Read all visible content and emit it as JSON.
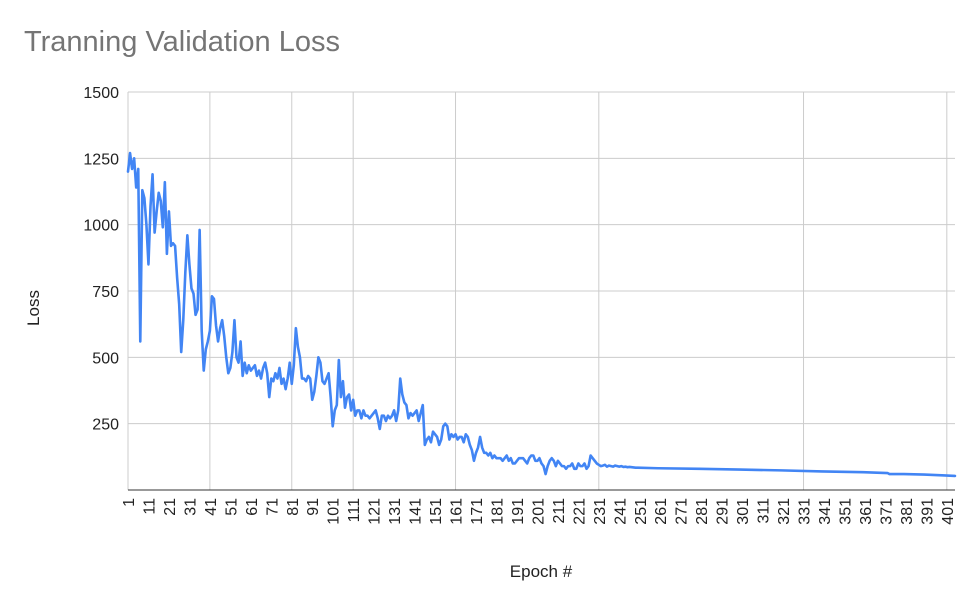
{
  "chart_data": {
    "type": "line",
    "title": "Tranning Validation Loss",
    "xlabel": "Epoch #",
    "ylabel": "Loss",
    "ylim": [
      0,
      1500
    ],
    "y_ticks": [
      250,
      500,
      750,
      1000,
      1250,
      1500
    ],
    "xlim": [
      1,
      405
    ],
    "x_ticks": [
      1,
      11,
      21,
      31,
      41,
      51,
      61,
      71,
      81,
      91,
      101,
      111,
      121,
      131,
      141,
      151,
      161,
      171,
      181,
      191,
      201,
      211,
      221,
      231,
      241,
      251,
      261,
      271,
      281,
      291,
      301,
      311,
      321,
      331,
      341,
      351,
      361,
      371,
      381,
      391,
      401
    ],
    "x_gridlines": [
      1,
      41,
      81,
      111,
      161,
      231,
      331,
      401
    ],
    "grid": true,
    "legend": "none",
    "series": [
      {
        "color": "#4285f4",
        "points": [
          [
            1,
            1200
          ],
          [
            2,
            1270
          ],
          [
            3,
            1210
          ],
          [
            4,
            1250
          ],
          [
            5,
            1140
          ],
          [
            6,
            1210
          ],
          [
            7,
            560
          ],
          [
            8,
            1130
          ],
          [
            9,
            1100
          ],
          [
            10,
            1000
          ],
          [
            11,
            850
          ],
          [
            12,
            1070
          ],
          [
            13,
            1190
          ],
          [
            14,
            970
          ],
          [
            15,
            1050
          ],
          [
            16,
            1120
          ],
          [
            17,
            1090
          ],
          [
            18,
            990
          ],
          [
            19,
            1160
          ],
          [
            20,
            890
          ],
          [
            21,
            1050
          ],
          [
            22,
            920
          ],
          [
            23,
            930
          ],
          [
            24,
            920
          ],
          [
            25,
            800
          ],
          [
            26,
            700
          ],
          [
            27,
            520
          ],
          [
            28,
            640
          ],
          [
            29,
            820
          ],
          [
            30,
            960
          ],
          [
            31,
            850
          ],
          [
            32,
            760
          ],
          [
            33,
            740
          ],
          [
            34,
            660
          ],
          [
            35,
            680
          ],
          [
            36,
            980
          ],
          [
            37,
            600
          ],
          [
            38,
            450
          ],
          [
            39,
            530
          ],
          [
            40,
            560
          ],
          [
            41,
            600
          ],
          [
            42,
            730
          ],
          [
            43,
            720
          ],
          [
            44,
            620
          ],
          [
            45,
            560
          ],
          [
            46,
            610
          ],
          [
            47,
            640
          ],
          [
            48,
            580
          ],
          [
            49,
            500
          ],
          [
            50,
            440
          ],
          [
            51,
            460
          ],
          [
            52,
            520
          ],
          [
            53,
            640
          ],
          [
            54,
            500
          ],
          [
            55,
            480
          ],
          [
            56,
            560
          ],
          [
            57,
            430
          ],
          [
            58,
            480
          ],
          [
            59,
            440
          ],
          [
            60,
            470
          ],
          [
            61,
            450
          ],
          [
            62,
            460
          ],
          [
            63,
            470
          ],
          [
            64,
            430
          ],
          [
            65,
            450
          ],
          [
            66,
            420
          ],
          [
            67,
            460
          ],
          [
            68,
            480
          ],
          [
            69,
            440
          ],
          [
            70,
            350
          ],
          [
            71,
            420
          ],
          [
            72,
            410
          ],
          [
            73,
            440
          ],
          [
            74,
            420
          ],
          [
            75,
            460
          ],
          [
            76,
            400
          ],
          [
            77,
            420
          ],
          [
            78,
            380
          ],
          [
            79,
            420
          ],
          [
            80,
            480
          ],
          [
            81,
            400
          ],
          [
            82,
            470
          ],
          [
            83,
            610
          ],
          [
            84,
            540
          ],
          [
            85,
            500
          ],
          [
            86,
            420
          ],
          [
            87,
            420
          ],
          [
            88,
            410
          ],
          [
            89,
            430
          ],
          [
            90,
            420
          ],
          [
            91,
            340
          ],
          [
            92,
            370
          ],
          [
            93,
            430
          ],
          [
            94,
            500
          ],
          [
            95,
            480
          ],
          [
            96,
            410
          ],
          [
            97,
            400
          ],
          [
            98,
            420
          ],
          [
            99,
            440
          ],
          [
            100,
            350
          ],
          [
            101,
            240
          ],
          [
            102,
            300
          ],
          [
            103,
            320
          ],
          [
            104,
            490
          ],
          [
            105,
            350
          ],
          [
            106,
            410
          ],
          [
            107,
            310
          ],
          [
            108,
            350
          ],
          [
            109,
            360
          ],
          [
            110,
            300
          ],
          [
            111,
            340
          ],
          [
            112,
            280
          ],
          [
            113,
            300
          ],
          [
            114,
            300
          ],
          [
            115,
            270
          ],
          [
            116,
            300
          ],
          [
            117,
            280
          ],
          [
            118,
            280
          ],
          [
            119,
            270
          ],
          [
            120,
            280
          ],
          [
            121,
            290
          ],
          [
            122,
            300
          ],
          [
            123,
            270
          ],
          [
            124,
            230
          ],
          [
            125,
            280
          ],
          [
            126,
            280
          ],
          [
            127,
            260
          ],
          [
            128,
            280
          ],
          [
            129,
            270
          ],
          [
            130,
            280
          ],
          [
            131,
            300
          ],
          [
            132,
            260
          ],
          [
            133,
            300
          ],
          [
            134,
            420
          ],
          [
            135,
            360
          ],
          [
            136,
            330
          ],
          [
            137,
            320
          ],
          [
            138,
            270
          ],
          [
            139,
            290
          ],
          [
            140,
            280
          ],
          [
            141,
            290
          ],
          [
            142,
            300
          ],
          [
            143,
            260
          ],
          [
            144,
            290
          ],
          [
            145,
            320
          ],
          [
            146,
            170
          ],
          [
            147,
            190
          ],
          [
            148,
            200
          ],
          [
            149,
            180
          ],
          [
            150,
            220
          ],
          [
            151,
            210
          ],
          [
            152,
            200
          ],
          [
            153,
            170
          ],
          [
            154,
            190
          ],
          [
            155,
            240
          ],
          [
            156,
            250
          ],
          [
            157,
            240
          ],
          [
            158,
            190
          ],
          [
            159,
            210
          ],
          [
            160,
            200
          ],
          [
            161,
            210
          ],
          [
            162,
            190
          ],
          [
            163,
            200
          ],
          [
            164,
            200
          ],
          [
            165,
            180
          ],
          [
            166,
            210
          ],
          [
            167,
            200
          ],
          [
            168,
            170
          ],
          [
            169,
            150
          ],
          [
            170,
            110
          ],
          [
            171,
            140
          ],
          [
            172,
            160
          ],
          [
            173,
            200
          ],
          [
            174,
            160
          ],
          [
            175,
            140
          ],
          [
            176,
            140
          ],
          [
            177,
            130
          ],
          [
            178,
            140
          ],
          [
            179,
            120
          ],
          [
            180,
            130
          ],
          [
            181,
            120
          ],
          [
            182,
            120
          ],
          [
            183,
            120
          ],
          [
            184,
            110
          ],
          [
            185,
            120
          ],
          [
            186,
            130
          ],
          [
            187,
            110
          ],
          [
            188,
            120
          ],
          [
            189,
            100
          ],
          [
            190,
            100
          ],
          [
            191,
            110
          ],
          [
            192,
            120
          ],
          [
            193,
            120
          ],
          [
            194,
            120
          ],
          [
            195,
            110
          ],
          [
            196,
            100
          ],
          [
            197,
            120
          ],
          [
            198,
            130
          ],
          [
            199,
            130
          ],
          [
            200,
            110
          ],
          [
            201,
            110
          ],
          [
            202,
            120
          ],
          [
            203,
            100
          ],
          [
            204,
            90
          ],
          [
            205,
            60
          ],
          [
            206,
            90
          ],
          [
            207,
            110
          ],
          [
            208,
            120
          ],
          [
            209,
            110
          ],
          [
            210,
            90
          ],
          [
            211,
            110
          ],
          [
            212,
            100
          ],
          [
            213,
            90
          ],
          [
            214,
            90
          ],
          [
            215,
            80
          ],
          [
            216,
            90
          ],
          [
            217,
            90
          ],
          [
            218,
            100
          ],
          [
            219,
            80
          ],
          [
            220,
            80
          ],
          [
            221,
            100
          ],
          [
            222,
            90
          ],
          [
            223,
            90
          ],
          [
            224,
            100
          ],
          [
            225,
            80
          ],
          [
            226,
            90
          ],
          [
            227,
            130
          ],
          [
            228,
            120
          ],
          [
            229,
            110
          ],
          [
            230,
            100
          ],
          [
            231,
            95
          ],
          [
            232,
            90
          ],
          [
            233,
            92
          ],
          [
            234,
            95
          ],
          [
            235,
            88
          ],
          [
            236,
            92
          ],
          [
            237,
            90
          ],
          [
            238,
            88
          ],
          [
            239,
            92
          ],
          [
            240,
            90
          ],
          [
            241,
            88
          ],
          [
            242,
            90
          ],
          [
            243,
            87
          ],
          [
            244,
            88
          ],
          [
            245,
            86
          ],
          [
            246,
            87
          ],
          [
            247,
            86
          ],
          [
            248,
            85
          ],
          [
            249,
            84
          ],
          [
            250,
            84
          ],
          [
            260,
            82
          ],
          [
            280,
            80
          ],
          [
            300,
            77
          ],
          [
            320,
            74
          ],
          [
            340,
            70
          ],
          [
            360,
            67
          ],
          [
            372,
            64
          ],
          [
            373,
            60
          ],
          [
            380,
            60
          ],
          [
            390,
            58
          ],
          [
            400,
            55
          ],
          [
            405,
            53
          ]
        ]
      }
    ]
  }
}
